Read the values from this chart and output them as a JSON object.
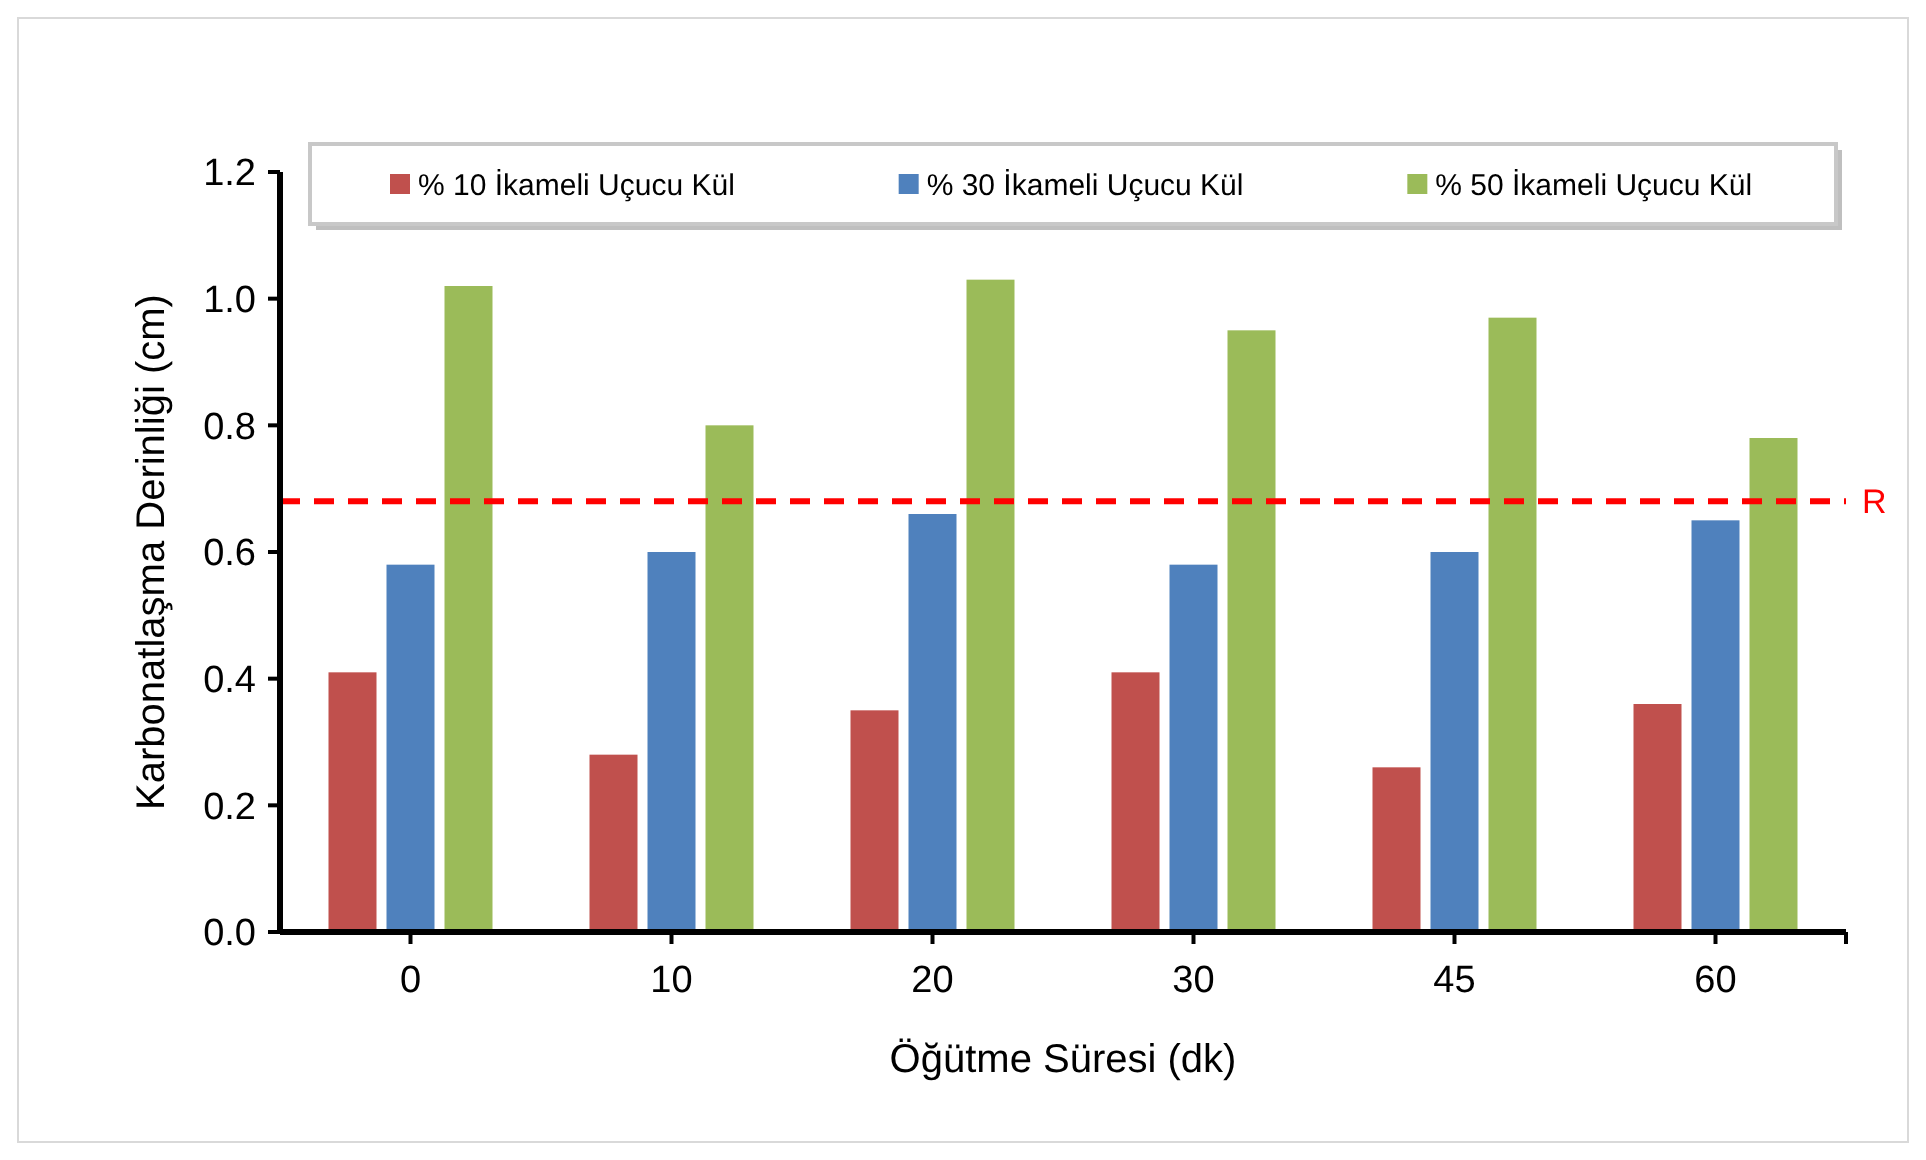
{
  "chart_data": {
    "type": "bar",
    "xlabel": "Öğütme Süresi (dk)",
    "ylabel": "Karbonatlaşma Derinliği (cm)",
    "categories": [
      "0",
      "10",
      "20",
      "30",
      "45",
      "60"
    ],
    "series": [
      {
        "name": "% 10 İkameli Uçucu Kül",
        "color": "#c0504d",
        "values": [
          0.41,
          0.28,
          0.35,
          0.41,
          0.26,
          0.36
        ]
      },
      {
        "name": "% 30 İkameli Uçucu Kül",
        "color": "#4f81bd",
        "values": [
          0.58,
          0.6,
          0.66,
          0.58,
          0.6,
          0.65
        ]
      },
      {
        "name": "% 50 İkameli Uçucu Kül",
        "color": "#9bbb59",
        "values": [
          1.02,
          0.8,
          1.03,
          0.95,
          0.97,
          0.78
        ]
      }
    ],
    "ylim": [
      0,
      1.2
    ],
    "yticks": [
      {
        "value": 0,
        "label": "0.0"
      },
      {
        "value": 0.2,
        "label": "0.2"
      },
      {
        "value": 0.4,
        "label": "0.4"
      },
      {
        "value": 0.6,
        "label": "0.6"
      },
      {
        "value": 0.8,
        "label": "0.8"
      },
      {
        "value": 1,
        "label": "1.0"
      },
      {
        "value": 1.2,
        "label": "1.2"
      }
    ],
    "ref_lines": [
      {
        "axis": "y",
        "value": 0.68,
        "label": "R",
        "color": "#ff0000",
        "line_style": "dashed"
      }
    ],
    "grid": false,
    "legend": "top"
  }
}
